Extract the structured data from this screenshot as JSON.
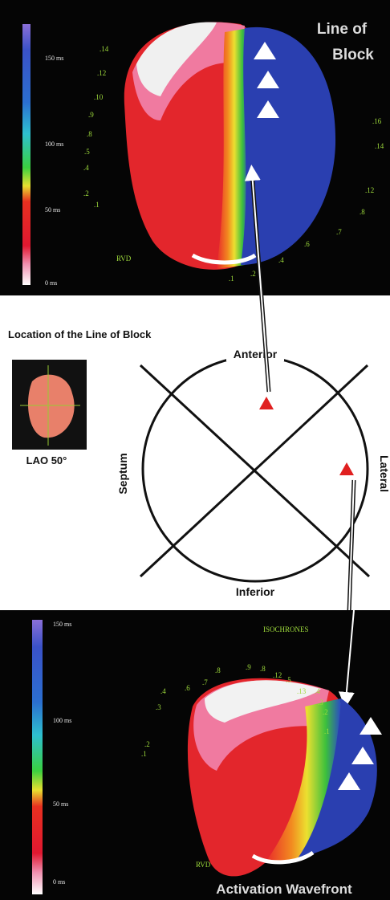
{
  "top_panel": {
    "title_lines": [
      "Line of",
      "Block"
    ],
    "scale_labels": [
      "150 ms",
      "100 ms",
      "50 ms",
      "0 ms"
    ],
    "isochrone_labels": [
      ".14",
      ".12",
      ".10",
      ".9",
      ".8",
      ".5",
      ".4",
      ".2",
      ".1",
      ".16",
      ".14",
      ".12",
      ".8",
      ".7",
      ".6",
      ".4",
      ".2",
      ".1"
    ],
    "chamber_label": "RVD"
  },
  "middle": {
    "heading": "Location of the Line of Block",
    "view_label": "LAO 50°",
    "directions": {
      "top": "Anterior",
      "bottom": "Inferior",
      "left": "Septum",
      "right": "Lateral"
    }
  },
  "bottom_panel": {
    "title": "Activation Wavefront",
    "legend_title": "ISOCHRONES",
    "scale_labels": [
      "150 ms",
      "100 ms",
      "50 ms",
      "0 ms"
    ],
    "isochrone_labels": [
      ".4",
      ".3",
      ".2",
      ".1",
      ".6",
      ".7",
      ".8",
      ".9",
      ".8",
      ".12",
      ".5",
      ".13",
      ".4",
      ".3",
      ".2",
      ".1"
    ],
    "chamber_label": "RVD"
  }
}
